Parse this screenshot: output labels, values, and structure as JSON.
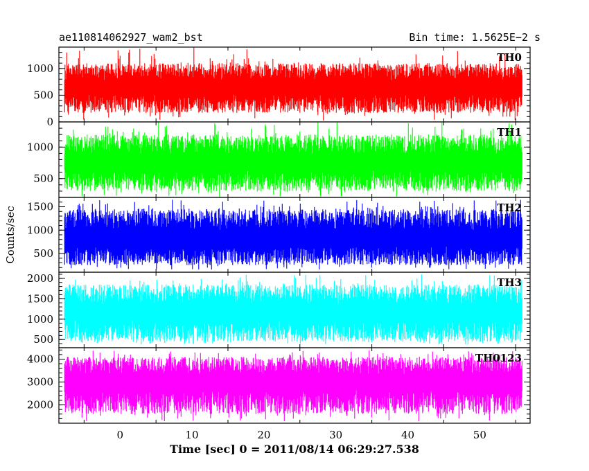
{
  "header": {
    "left": "ae110814062927_wam2_bst",
    "right": "Bin time: 1.5625E−2 s"
  },
  "chart_data": {
    "type": "line",
    "title": "ae110814062927_wam2_bst",
    "subtitle": "Bin time: 1.5625E−2 s",
    "xlabel": "Time [sec] 0 = 2011/08/14 06:29:27.538",
    "ylabel": "Counts/sec",
    "xlim": [
      -8.5,
      57
    ],
    "xticks": [
      0,
      10,
      20,
      30,
      40,
      50
    ],
    "bin_time": 0.015625,
    "x_start": -7.7,
    "x_end": 55.9,
    "panels": [
      {
        "name": "TH0",
        "color": "#ff0000",
        "ylim": [
          0,
          1400
        ],
        "yticks": [
          0,
          500,
          1000
        ],
        "mean": 600,
        "min_typical": 170,
        "max_typical": 1100,
        "min": 10,
        "max": 1400
      },
      {
        "name": "TH1",
        "color": "#00ff00",
        "ylim": [
          200,
          1400
        ],
        "yticks": [
          500,
          1000
        ],
        "mean": 720,
        "min_typical": 300,
        "max_typical": 1200,
        "min": 200,
        "max": 1400
      },
      {
        "name": "TH2",
        "color": "#0000ff",
        "ylim": [
          100,
          1700
        ],
        "yticks": [
          500,
          1000,
          1500
        ],
        "mean": 750,
        "min_typical": 250,
        "max_typical": 1450,
        "min": 150,
        "max": 1650
      },
      {
        "name": "TH3",
        "color": "#00ffff",
        "ylim": [
          300,
          2150
        ],
        "yticks": [
          500,
          1000,
          1500,
          2000
        ],
        "mean": 1100,
        "min_typical": 450,
        "max_typical": 1850,
        "min": 380,
        "max": 2100
      },
      {
        "name": "TH0123",
        "color": "#ff00ff",
        "ylim": [
          1200,
          4500
        ],
        "yticks": [
          2000,
          3000,
          4000
        ],
        "mean": 2900,
        "min_typical": 1600,
        "max_typical": 4100,
        "min": 1250,
        "max": 4400
      }
    ]
  }
}
